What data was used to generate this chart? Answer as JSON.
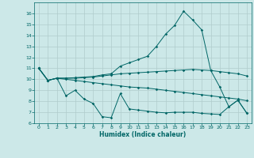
{
  "xlabel": "Humidex (Indice chaleur)",
  "bg_color": "#cce8e8",
  "grid_color": "#b0cccc",
  "line_color": "#006666",
  "xlim": [
    -0.5,
    23.5
  ],
  "ylim": [
    6,
    17
  ],
  "yticks": [
    6,
    7,
    8,
    9,
    10,
    11,
    12,
    13,
    14,
    15,
    16
  ],
  "xticks": [
    0,
    1,
    2,
    3,
    4,
    5,
    6,
    7,
    8,
    9,
    10,
    11,
    12,
    13,
    14,
    15,
    16,
    17,
    18,
    19,
    20,
    21,
    22,
    23
  ],
  "line1_x": [
    0,
    1,
    2,
    3,
    4,
    5,
    6,
    7,
    8,
    9,
    10,
    11,
    12,
    13,
    14,
    15,
    16,
    17,
    18,
    19,
    20,
    21,
    22,
    23
  ],
  "line1_y": [
    11.0,
    9.9,
    10.1,
    10.1,
    10.15,
    10.2,
    10.25,
    10.4,
    10.5,
    11.2,
    11.5,
    11.8,
    12.1,
    13.0,
    14.1,
    14.9,
    16.2,
    15.4,
    14.5,
    10.8,
    9.3,
    7.5,
    8.1,
    6.9
  ],
  "line2_x": [
    0,
    1,
    2,
    3,
    4,
    5,
    6,
    7,
    8,
    9,
    10,
    11,
    12,
    13,
    14,
    15,
    16,
    17,
    18,
    19,
    20,
    21,
    22,
    23
  ],
  "line2_y": [
    11.0,
    9.9,
    10.1,
    10.1,
    10.1,
    10.15,
    10.2,
    10.3,
    10.4,
    10.5,
    10.55,
    10.6,
    10.65,
    10.7,
    10.75,
    10.8,
    10.85,
    10.9,
    10.85,
    10.8,
    10.7,
    10.6,
    10.5,
    10.3
  ],
  "line3_x": [
    0,
    1,
    2,
    3,
    4,
    5,
    6,
    7,
    8,
    9,
    10,
    11,
    12,
    13,
    14,
    15,
    16,
    17,
    18,
    19,
    20,
    21,
    22,
    23
  ],
  "line3_y": [
    11.0,
    9.9,
    10.1,
    10.0,
    9.9,
    9.8,
    9.7,
    9.6,
    9.5,
    9.4,
    9.3,
    9.25,
    9.2,
    9.1,
    9.0,
    8.9,
    8.8,
    8.7,
    8.6,
    8.5,
    8.4,
    8.3,
    8.2,
    8.05
  ],
  "line4_x": [
    0,
    1,
    2,
    3,
    4,
    5,
    6,
    7,
    8,
    9,
    10,
    11,
    12,
    13,
    14,
    15,
    16,
    17,
    18,
    19,
    20,
    21,
    22,
    23
  ],
  "line4_y": [
    11.0,
    9.9,
    10.1,
    8.5,
    9.0,
    8.2,
    7.8,
    6.6,
    6.5,
    8.7,
    7.3,
    7.2,
    7.1,
    7.0,
    6.95,
    7.0,
    7.0,
    7.0,
    6.9,
    6.85,
    6.8,
    7.5,
    8.1,
    6.9
  ]
}
